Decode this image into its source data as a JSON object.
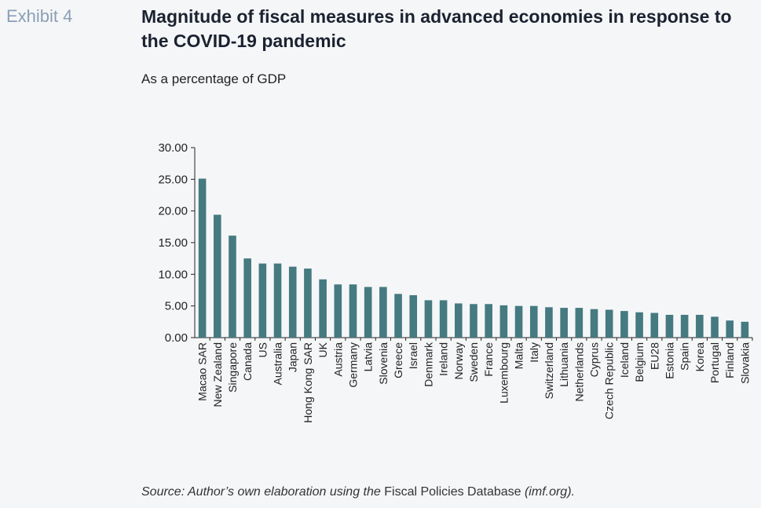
{
  "header": {
    "exhibit_label": "Exhibit 4",
    "title": "Magnitude of fiscal measures in advanced economies in response to the COVID-19 pandemic",
    "subtitle": "As a percentage of GDP"
  },
  "source": {
    "prefix": "Source: Author’s own elaboration using the ",
    "database": "Fiscal Policies Database",
    "suffix": " (imf.org)."
  },
  "colors": {
    "bar": "#447a80",
    "axis": "#222222"
  },
  "chart_data": {
    "type": "bar",
    "categories": [
      "Macao SAR",
      "New Zealand",
      "Singapore",
      "Canada",
      "US",
      "Australia",
      "Japan",
      "Hong Kong SAR",
      "UK",
      "Austria",
      "Germany",
      "Latvia",
      "Slovenia",
      "Greece",
      "Israel",
      "Denmark",
      "Ireland",
      "Norway",
      "Sweden",
      "France",
      "Luxembourg",
      "Malta",
      "Italy",
      "Switzerland",
      "Lithuania",
      "Netherlands",
      "Cyprus",
      "Czech Republic",
      "Iceland",
      "Belgium",
      "EU28",
      "Estonia",
      "Spain",
      "Korea",
      "Portugal",
      "Finland",
      "Slovakia"
    ],
    "values": [
      25.1,
      19.4,
      16.1,
      12.5,
      11.7,
      11.7,
      11.2,
      10.9,
      9.2,
      8.4,
      8.4,
      8.0,
      8.0,
      6.9,
      6.7,
      5.9,
      5.9,
      5.4,
      5.3,
      5.3,
      5.1,
      5.0,
      5.0,
      4.8,
      4.7,
      4.7,
      4.5,
      4.4,
      4.2,
      4.0,
      3.9,
      3.6,
      3.6,
      3.6,
      3.3,
      2.7,
      2.5
    ],
    "ylim": [
      0,
      30
    ],
    "yticks": [
      "0.00",
      "5.00",
      "10.00",
      "15.00",
      "20.00",
      "25.00",
      "30.00"
    ],
    "grid": false,
    "legend": "none"
  }
}
